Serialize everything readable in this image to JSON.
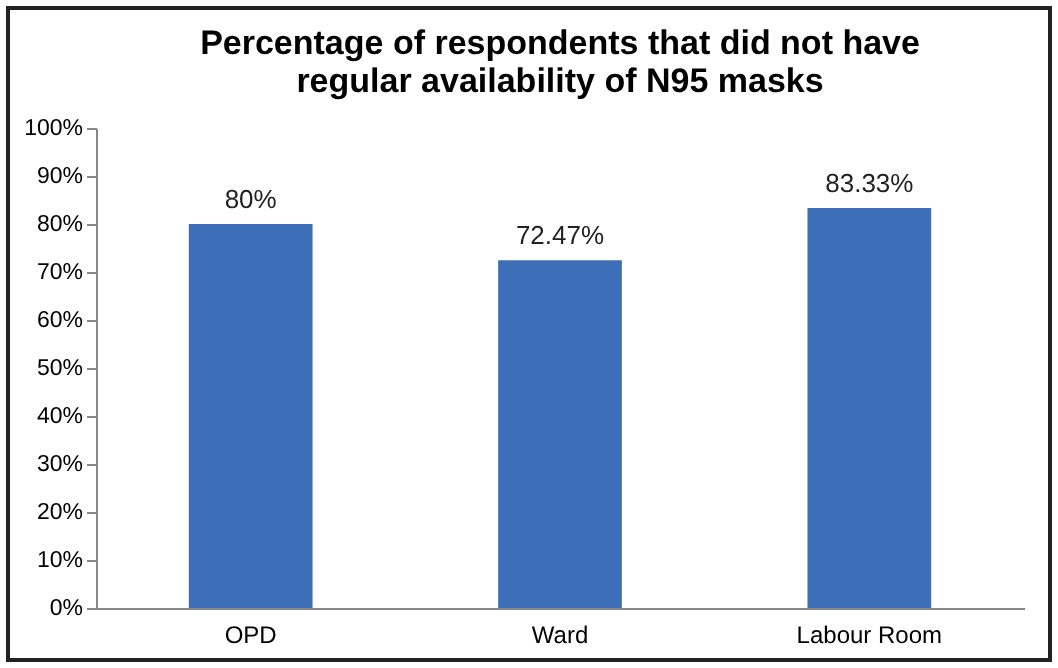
{
  "chart_data": {
    "type": "bar",
    "title": "Percentage of respondents that did not have regular availability of N95 masks",
    "categories": [
      "OPD",
      "Ward",
      "Labour Room"
    ],
    "values": [
      80,
      72.47,
      83.33
    ],
    "value_labels": [
      "80%",
      "72.47%",
      "83.33%"
    ],
    "color": "#3d6fb8",
    "ylim": [
      0,
      100
    ],
    "yticks": [
      {
        "value": 0,
        "label": "0%"
      },
      {
        "value": 10,
        "label": "10%"
      },
      {
        "value": 20,
        "label": "20%"
      },
      {
        "value": 30,
        "label": "30%"
      },
      {
        "value": 40,
        "label": "40%"
      },
      {
        "value": 50,
        "label": "50%"
      },
      {
        "value": 60,
        "label": "60%"
      },
      {
        "value": 70,
        "label": "70%"
      },
      {
        "value": 80,
        "label": "80%"
      },
      {
        "value": 90,
        "label": "90%"
      },
      {
        "value": 100,
        "label": "100%"
      }
    ],
    "grid": false
  }
}
